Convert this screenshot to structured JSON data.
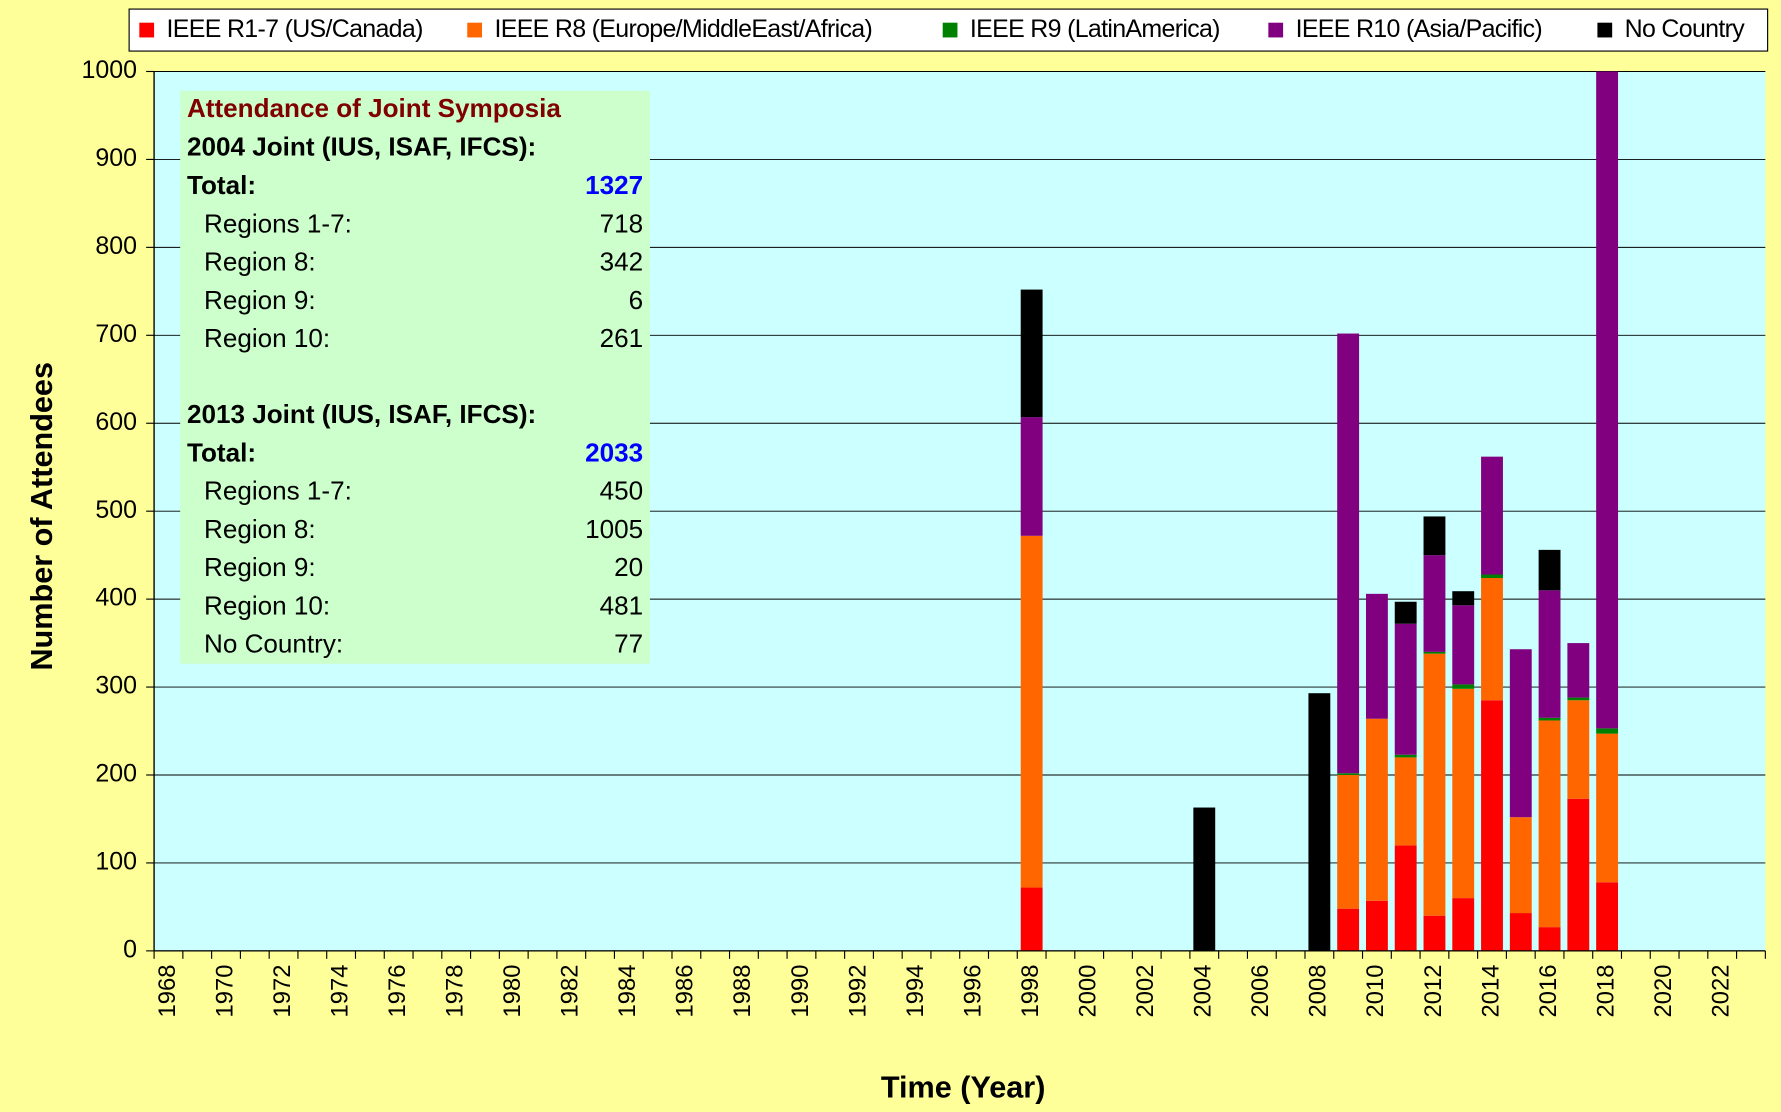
{
  "chart_data": {
    "type": "stacked_bar",
    "y_label": "Number of Attendees",
    "x_label": "Time (Year)",
    "categories": [
      "1968",
      null,
      "1970",
      null,
      "1972",
      null,
      "1974",
      null,
      "1976",
      null,
      "1978",
      null,
      "1980",
      null,
      "1982",
      null,
      "1984",
      null,
      "1986",
      null,
      "1988",
      null,
      "1990",
      null,
      "1992",
      null,
      "1994",
      null,
      "1996",
      null,
      "1998",
      null,
      "2000",
      null,
      "2002",
      null,
      "2004",
      null,
      "2006",
      null,
      "2008",
      null,
      "2010",
      null,
      "2012",
      null,
      "2014",
      null,
      "2016",
      null,
      "2018",
      null,
      "2020",
      null,
      "2022",
      null
    ],
    "series": [
      {
        "name": "IEEE R1-7 (US/Canada)",
        "color": "#ff0000",
        "values": [
          0,
          0,
          0,
          0,
          0,
          0,
          0,
          0,
          0,
          0,
          0,
          0,
          0,
          0,
          0,
          0,
          0,
          0,
          0,
          0,
          0,
          0,
          0,
          0,
          0,
          0,
          0,
          0,
          0,
          0,
          72,
          0,
          0,
          0,
          0,
          0,
          0,
          0,
          0,
          0,
          0,
          48,
          57,
          120,
          40,
          60,
          285,
          43,
          27,
          173,
          78,
          0,
          0,
          0,
          0,
          0
        ]
      },
      {
        "name": "IEEE R8 (Europe/MiddleEast/Africa)",
        "color": "#ff6600",
        "values": [
          0,
          0,
          0,
          0,
          0,
          0,
          0,
          0,
          0,
          0,
          0,
          0,
          0,
          0,
          0,
          0,
          0,
          0,
          0,
          0,
          0,
          0,
          0,
          0,
          0,
          0,
          0,
          0,
          0,
          0,
          400,
          0,
          0,
          0,
          0,
          0,
          0,
          0,
          0,
          0,
          0,
          152,
          207,
          100,
          298,
          238,
          139,
          109,
          235,
          112,
          169,
          0,
          0,
          0,
          0,
          0
        ]
      },
      {
        "name": "IEEE R9 (LatinAmerica)",
        "color": "#008000",
        "values": [
          0,
          0,
          0,
          0,
          0,
          0,
          0,
          0,
          0,
          0,
          0,
          0,
          0,
          0,
          0,
          0,
          0,
          0,
          0,
          0,
          0,
          0,
          0,
          0,
          0,
          0,
          0,
          0,
          0,
          0,
          0,
          0,
          0,
          0,
          0,
          0,
          0,
          0,
          0,
          0,
          0,
          2,
          0,
          3,
          2,
          5,
          4,
          0,
          3,
          3,
          6,
          0,
          0,
          0,
          0,
          0
        ]
      },
      {
        "name": "IEEE R10 (Asia/Pacific)",
        "color": "#800080",
        "values": [
          0,
          0,
          0,
          0,
          0,
          0,
          0,
          0,
          0,
          0,
          0,
          0,
          0,
          0,
          0,
          0,
          0,
          0,
          0,
          0,
          0,
          0,
          0,
          0,
          0,
          0,
          0,
          0,
          0,
          0,
          135,
          0,
          0,
          0,
          0,
          0,
          0,
          0,
          0,
          0,
          0,
          500,
          142,
          149,
          110,
          90,
          134,
          191,
          145,
          62,
          747,
          0,
          0,
          0,
          0,
          0
        ]
      },
      {
        "name": "No Country",
        "color": "#000000",
        "values": [
          0,
          0,
          0,
          0,
          0,
          0,
          0,
          0,
          0,
          0,
          0,
          0,
          0,
          0,
          0,
          0,
          0,
          0,
          0,
          0,
          0,
          0,
          0,
          0,
          0,
          0,
          0,
          0,
          0,
          0,
          145,
          0,
          0,
          0,
          0,
          0,
          163,
          0,
          0,
          0,
          293,
          0,
          0,
          25,
          44,
          16,
          0,
          0,
          46,
          0,
          0,
          0,
          0,
          0,
          0,
          0
        ]
      }
    ],
    "ylim": [
      0,
      1000
    ],
    "yticks": [
      0,
      100,
      200,
      300,
      400,
      500,
      600,
      700,
      800,
      900,
      1000
    ],
    "grid": true,
    "legend": "top",
    "annotation": {
      "title": "Attendance of Joint Symposia",
      "groups": [
        {
          "heading": "2004 Joint (IUS, ISAF, IFCS):",
          "rows": [
            {
              "label": "Total:",
              "value": 1327
            },
            {
              "label": "Regions 1-7:",
              "value": 718
            },
            {
              "label": "Region 8:",
              "value": 342
            },
            {
              "label": "Region 9:",
              "value": 6
            },
            {
              "label": "Region 10:",
              "value": 261
            }
          ]
        },
        {
          "heading": "2013 Joint (IUS, ISAF, IFCS):",
          "rows": [
            {
              "label": "Total:",
              "value": 2033
            },
            {
              "label": "Regions 1-7:",
              "value": 450
            },
            {
              "label": "Region 8:",
              "value": 1005
            },
            {
              "label": "Region 9:",
              "value": 20
            },
            {
              "label": "Region 10:",
              "value": 481
            },
            {
              "label": "No Country:",
              "value": 77
            }
          ]
        }
      ]
    }
  }
}
